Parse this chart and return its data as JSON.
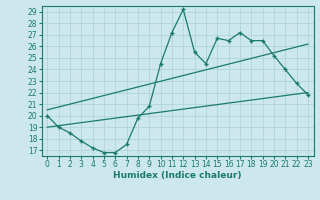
{
  "title": "",
  "xlabel": "Humidex (Indice chaleur)",
  "ylabel": "",
  "bg_color": "#cce8ec",
  "grid_color": "#b0d4d8",
  "line_color": "#1a7a6e",
  "xlim": [
    -0.5,
    23.5
  ],
  "ylim": [
    16.5,
    29.5
  ],
  "xticks": [
    0,
    1,
    2,
    3,
    4,
    5,
    6,
    7,
    8,
    9,
    10,
    11,
    12,
    13,
    14,
    15,
    16,
    17,
    18,
    19,
    20,
    21,
    22,
    23
  ],
  "yticks": [
    17,
    18,
    19,
    20,
    21,
    22,
    23,
    24,
    25,
    26,
    27,
    28,
    29
  ],
  "main_x": [
    0,
    1,
    2,
    3,
    4,
    5,
    6,
    7,
    8,
    9,
    10,
    11,
    12,
    13,
    14,
    15,
    16,
    17,
    18,
    19,
    20,
    21,
    22,
    23
  ],
  "main_y": [
    20.0,
    19.0,
    18.5,
    17.8,
    17.2,
    16.8,
    16.8,
    17.5,
    19.8,
    20.8,
    24.5,
    27.2,
    29.2,
    25.5,
    24.5,
    26.7,
    26.5,
    27.2,
    26.5,
    26.5,
    25.2,
    24.0,
    22.8,
    21.8
  ],
  "lower_line_x": [
    0,
    23
  ],
  "lower_line_y": [
    19.0,
    22.0
  ],
  "upper_line_x": [
    0,
    23
  ],
  "upper_line_y": [
    20.5,
    26.2
  ],
  "xlabel_fontsize": 6.5,
  "tick_fontsize": 5.5
}
